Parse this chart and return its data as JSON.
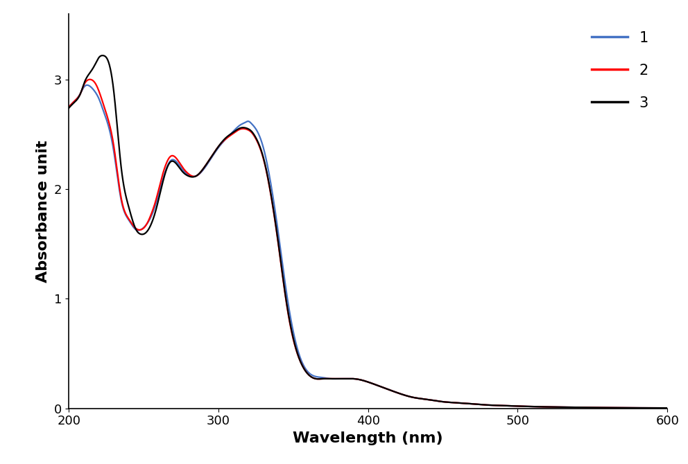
{
  "xlabel": "Wavelength (nm)",
  "ylabel": "Absorbance unit",
  "xlim": [
    200,
    600
  ],
  "ylim": [
    0,
    3.6
  ],
  "yticks": [
    0,
    1,
    2,
    3
  ],
  "xticks": [
    200,
    300,
    400,
    500,
    600
  ],
  "line_colors": [
    "#4472C4",
    "#FF0000",
    "#000000"
  ],
  "line_labels": [
    "1",
    "2",
    "3"
  ],
  "line_width": 1.6,
  "legend_fontsize": 15,
  "axis_label_fontsize": 16,
  "tick_fontsize": 13,
  "background_color": "#ffffff",
  "keypoints_x": [
    200,
    202,
    205,
    208,
    210,
    212,
    215,
    218,
    220,
    223,
    226,
    230,
    235,
    240,
    245,
    248,
    252,
    255,
    258,
    262,
    265,
    268,
    272,
    276,
    280,
    285,
    290,
    295,
    300,
    305,
    310,
    315,
    318,
    320,
    322,
    325,
    330,
    335,
    340,
    345,
    350,
    355,
    360,
    365,
    370,
    375,
    380,
    385,
    390,
    395,
    400,
    410,
    420,
    430,
    440,
    450,
    460,
    470,
    480,
    490,
    500,
    520,
    540,
    560,
    580,
    600
  ],
  "keypoints_y1": [
    2.75,
    2.78,
    2.82,
    2.88,
    2.93,
    2.95,
    2.93,
    2.88,
    2.83,
    2.72,
    2.6,
    2.35,
    1.9,
    1.72,
    1.63,
    1.63,
    1.68,
    1.75,
    1.86,
    2.05,
    2.18,
    2.26,
    2.25,
    2.18,
    2.13,
    2.12,
    2.18,
    2.28,
    2.38,
    2.46,
    2.53,
    2.59,
    2.61,
    2.62,
    2.6,
    2.55,
    2.38,
    2.05,
    1.6,
    1.1,
    0.7,
    0.45,
    0.33,
    0.29,
    0.28,
    0.27,
    0.27,
    0.27,
    0.27,
    0.26,
    0.24,
    0.19,
    0.14,
    0.1,
    0.08,
    0.06,
    0.05,
    0.04,
    0.03,
    0.025,
    0.02,
    0.013,
    0.009,
    0.006,
    0.004,
    0.003
  ],
  "keypoints_y2": [
    2.75,
    2.78,
    2.82,
    2.88,
    2.95,
    2.99,
    3.0,
    2.96,
    2.9,
    2.78,
    2.65,
    2.4,
    1.92,
    1.73,
    1.64,
    1.63,
    1.68,
    1.77,
    1.89,
    2.1,
    2.23,
    2.3,
    2.28,
    2.2,
    2.14,
    2.12,
    2.19,
    2.29,
    2.39,
    2.46,
    2.51,
    2.55,
    2.55,
    2.54,
    2.52,
    2.46,
    2.28,
    1.95,
    1.5,
    1.0,
    0.63,
    0.42,
    0.31,
    0.27,
    0.27,
    0.27,
    0.27,
    0.27,
    0.27,
    0.26,
    0.24,
    0.19,
    0.14,
    0.1,
    0.08,
    0.06,
    0.05,
    0.04,
    0.03,
    0.025,
    0.02,
    0.013,
    0.009,
    0.006,
    0.004,
    0.003
  ],
  "keypoints_y3": [
    2.74,
    2.77,
    2.81,
    2.88,
    2.96,
    3.02,
    3.08,
    3.15,
    3.2,
    3.22,
    3.18,
    2.9,
    2.2,
    1.84,
    1.63,
    1.59,
    1.61,
    1.68,
    1.8,
    2.02,
    2.17,
    2.25,
    2.23,
    2.16,
    2.12,
    2.12,
    2.19,
    2.29,
    2.39,
    2.47,
    2.52,
    2.56,
    2.56,
    2.55,
    2.53,
    2.47,
    2.29,
    1.96,
    1.51,
    1.01,
    0.64,
    0.42,
    0.31,
    0.27,
    0.27,
    0.27,
    0.27,
    0.27,
    0.27,
    0.26,
    0.24,
    0.19,
    0.14,
    0.1,
    0.08,
    0.06,
    0.05,
    0.04,
    0.03,
    0.025,
    0.02,
    0.013,
    0.009,
    0.006,
    0.004,
    0.003
  ]
}
